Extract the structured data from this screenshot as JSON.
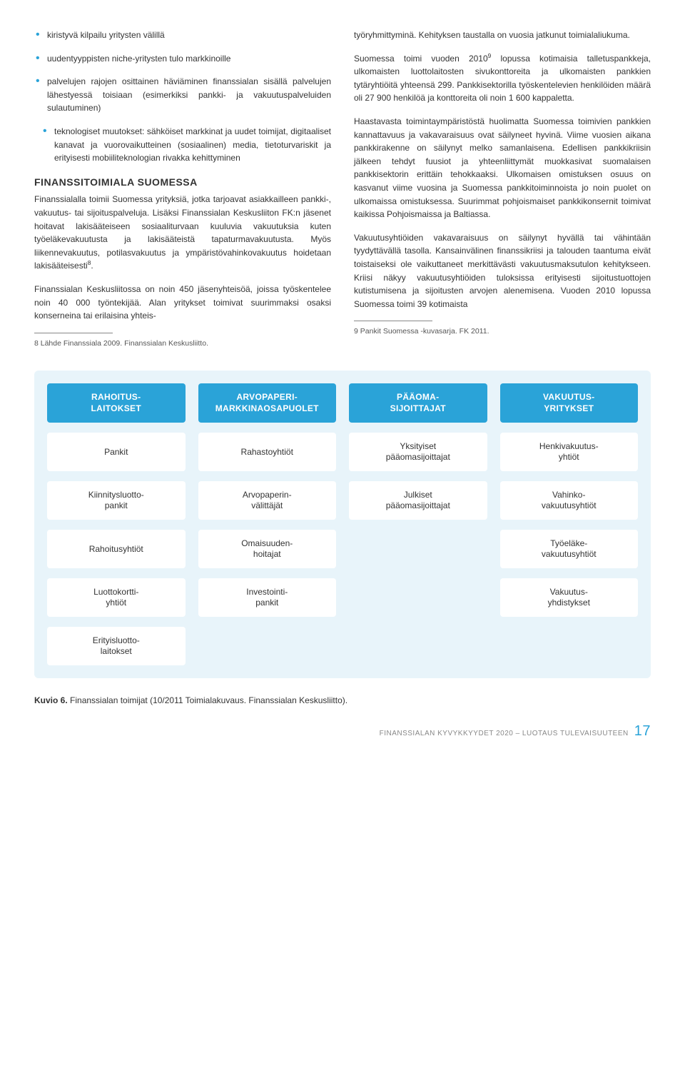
{
  "left": {
    "bullets": [
      "kiristyvä kilpailu yritysten välillä",
      "uudentyyppisten niche-yritysten tulo markkinoille",
      "palvelujen rajojen osittainen häviäminen finanssialan sisällä palvelujen lähestyessä toisiaan (esimerkiksi pankki- ja vakuutuspalveluiden sulautuminen)",
      "teknologiset muutokset: sähköiset markkinat ja uudet toimijat, digitaaliset kanavat ja vuorovaikutteinen (sosiaalinen) media, tietoturvariskit ja erityisesti mobiiliteknologian rivakka kehittyminen"
    ],
    "heading": "FINANSSITOIMIALA SUOMESSA",
    "p1": "Finanssialalla toimii Suomessa yrityksiä, jotka tarjoavat asiakkailleen pankki-, vakuutus- tai sijoituspalveluja. Lisäksi Finanssialan Keskusliiton FK:n jäsenet hoitavat lakisääteiseen sosiaaliturvaan kuuluvia vakuutuksia kuten työeläkevakuutusta ja lakisääteistä tapaturmavakuutusta. Myös liikennevakuutus, potilasvakuutus ja ympäristövahinkovakuutus hoidetaan lakisääteisesti",
    "p1_sup": "8",
    "p1_tail": ".",
    "p2": "Finanssialan Keskusliitossa on noin 450 jäsenyhteisöä, joissa työskentelee noin 40 000 työntekijää. Alan yritykset toimivat suurimmaksi osaksi konserneina tai erilaisina yhteis-",
    "footnote": "8   Lähde Finanssiala 2009. Finanssialan Keskusliitto."
  },
  "right": {
    "p0": "työryhmittyminä. Kehityksen taustalla on vuosia jatkunut toimialaliukuma.",
    "p1a": "Suomessa toimi vuoden 2010",
    "p1_sup": "9",
    "p1b": " lopussa kotimaisia talletuspankkeja, ulkomaisten luottolaitosten sivukonttoreita ja ulkomaisten pankkien tytäryhtiöitä yhteensä 299. Pankkisektorilla työskentelevien henkilöiden määrä oli 27 900 henkilöä ja konttoreita oli noin 1 600 kappaletta.",
    "p2": "Haastavasta toimintaympäristöstä huolimatta Suomessa toimivien pankkien kannattavuus ja vakavaraisuus ovat säilyneet hyvinä. Viime vuosien aikana pankkirakenne on säilynyt melko samanlaisena. Edellisen pankkikriisin jälkeen tehdyt fuusiot ja yhteenliittymät muokkasivat suomalaisen pankkisektorin erittäin tehokkaaksi. Ulkomaisen omistuksen osuus on kasvanut viime vuosina ja Suomessa pankkitoiminnoista jo noin puolet on ulkomaissa omistuksessa. Suurimmat pohjoismaiset pankkikonsernit toimivat kaikissa Pohjoismaissa ja Baltiassa.",
    "p3": "Vakuutusyhtiöiden vakavaraisuus on säilynyt hyvällä tai vähintään tyydyttävällä tasolla. Kansainvälinen finanssikriisi ja talouden taantuma eivät toistaiseksi ole vaikuttaneet merkittävästi vakuutusmaksutulon kehitykseen. Kriisi näkyy vakuutusyhtiöiden tuloksissa erityisesti sijoitustuottojen kutistumisena ja sijoitusten arvojen alenemisena. Vuoden 2010 lopussa Suomessa toimi 39 kotimaista",
    "footnote": "9   Pankit Suomessa -kuvasarja. FK 2011."
  },
  "diagram": {
    "bg_color": "#e8f4fa",
    "header_color": "#2aa3d8",
    "header_text_color": "#ffffff",
    "box_bg": "#ffffff",
    "columns": [
      {
        "header": "RAHOITUS-\nLAITOKSET",
        "cells": [
          "Pankit",
          "Kiinnitysluotto-\npankit",
          "Rahoitusyhtiöt",
          "Luottokortti-\nyhtiöt",
          "Erityisluotto-\nlaitokset"
        ]
      },
      {
        "header": "ARVOPAPERI-\nMARKKINAOSAPUOLET",
        "cells": [
          "Rahastoyhtiöt",
          "Arvopaperin-\nvälittäjät",
          "Omaisuuden-\nhoitajat",
          "Investointi-\npankit",
          ""
        ]
      },
      {
        "header": "PÄÄOMA-\nSIJOITTAJAT",
        "cells": [
          "Yksityiset\npääomasijoittajat",
          "Julkiset\npääomasijoittajat",
          "",
          "",
          ""
        ]
      },
      {
        "header": "VAKUUTUS-\nYRITYKSET",
        "cells": [
          "Henkivakuutus-\nyhtiöt",
          "Vahinko-\nvakuutusyhtiöt",
          "Työeläke-\nvakuutusyhtiöt",
          "Vakuutus-\nyhdistykset",
          ""
        ]
      }
    ]
  },
  "caption": {
    "bold": "Kuvio 6.",
    "rest": " Finanssialan toimijat (10/2011 Toimialakuvaus. Finanssialan Keskusliitto)."
  },
  "footer": {
    "text": "FINANSSIALAN KYVYKKYYDET 2020 – LUOTAUS TULEVAISUUTEEN",
    "page": "17"
  }
}
